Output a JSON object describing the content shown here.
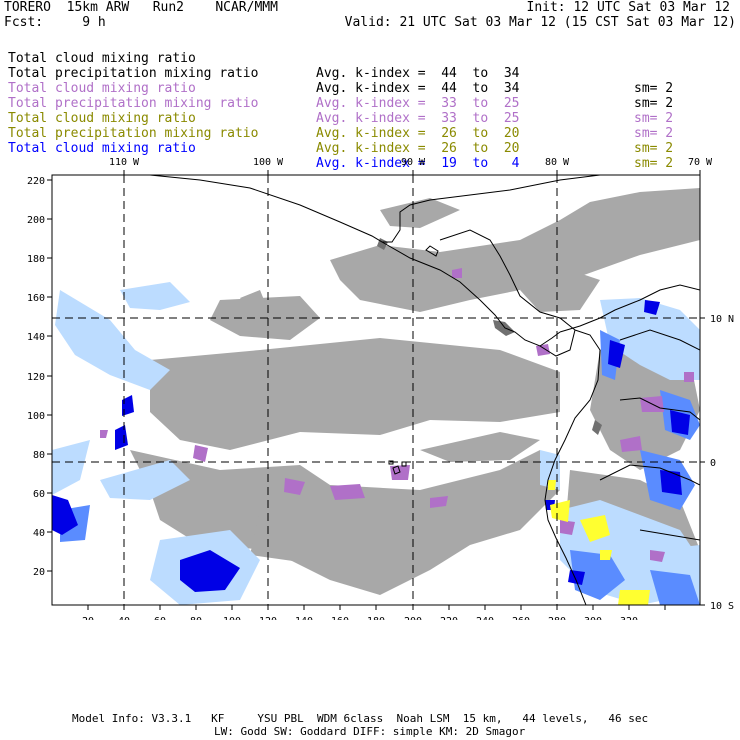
{
  "header": {
    "model": "TORERO  15km ARW   Run2    NCAR/MMM",
    "init": "Init: 12 UTC Sat 03 Mar 12",
    "fcst": "Fcst:     9 h",
    "valid": "Valid: 21 UTC Sat 03 Mar 12 (15 CST Sat 03 Mar 12)"
  },
  "legend": [
    {
      "field": "Total cloud mixing ratio",
      "avg": "Avg. k-index =  44  to  34",
      "sm": "sm= 2",
      "color": "#000000"
    },
    {
      "field": "Total precipitation mixing ratio",
      "avg": "Avg. k-index =  44  to  34",
      "sm": "sm= 2",
      "color": "#000000"
    },
    {
      "field": "Total cloud mixing ratio",
      "avg": "Avg. k-index =  33  to  25",
      "sm": "sm= 2",
      "color": "#b070c8"
    },
    {
      "field": "Total precipitation mixing ratio",
      "avg": "Avg. k-index =  33  to  25",
      "sm": "sm= 2",
      "color": "#b070c8"
    },
    {
      "field": "Total cloud mixing ratio",
      "avg": "Avg. k-index =  26  to  20",
      "sm": "sm= 2",
      "color": "#8a8a00"
    },
    {
      "field": "Total precipitation mixing ratio",
      "avg": "Avg. k-index =  26  to  20",
      "sm": "sm= 2",
      "color": "#8a8a00"
    },
    {
      "field": "Total cloud mixing ratio",
      "avg": "Avg. k-index =  19  to   4",
      "sm": "",
      "color": "#0000ff"
    }
  ],
  "map": {
    "lon_labels": [
      "110 W",
      "100 W",
      "90 W",
      "80 W",
      "70 W"
    ],
    "lat_labels": [
      "10 N",
      "0",
      "10 S"
    ],
    "x_ticks": [
      "20",
      "40",
      "60",
      "80",
      "100",
      "120",
      "140",
      "160",
      "180",
      "200",
      "220",
      "240",
      "260",
      "280",
      "300",
      "320"
    ],
    "y_ticks": [
      "220",
      "200",
      "180",
      "160",
      "140",
      "120",
      "100",
      "80",
      "60",
      "40",
      "20"
    ],
    "colors": {
      "gray": "#a8a8a8",
      "dark_gray": "#707070",
      "purple": "#b070c8",
      "yellow": "#ffff30",
      "blue": "#0000e6",
      "mid_blue": "#5a8cff",
      "light_blue": "#bcdcff",
      "coast": "#000000"
    }
  },
  "footer": {
    "line1": "Model Info: V3.3.1   KF     YSU PBL  WDM 6class  Noah LSM  15 km,   44 levels,   46 sec",
    "line2": "LW: Godd SW: Goddard DIFF: simple KM: 2D Smagor"
  }
}
